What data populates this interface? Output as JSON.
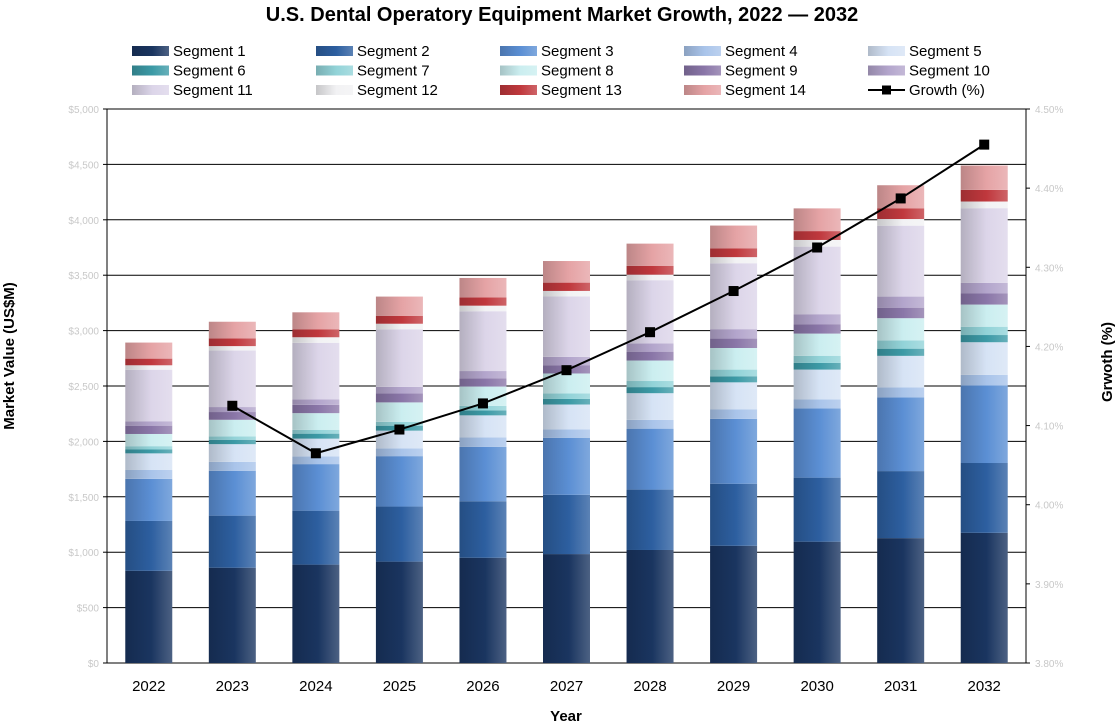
{
  "chart_data": {
    "type": "bar",
    "subtype": "stacked bar with line overlay on secondary axis",
    "title": "U.S. Dental Operatory Equipment Market Growth, 2022 — 2032",
    "xlabel": "Year",
    "ylabel": "Market Value (US$M)",
    "y2label": "Grwoth (%)",
    "categories": [
      "2022",
      "2023",
      "2024",
      "2025",
      "2026",
      "2027",
      "2028",
      "2029",
      "2030",
      "2031",
      "2032"
    ],
    "y_ticks": [
      "$0",
      "$500",
      "$1,000",
      "$1,500",
      "$2,000",
      "$2,500",
      "$3,000",
      "$3,500",
      "$4,000",
      "$4,500",
      "$5,000"
    ],
    "y2_ticks": [
      "3.80%",
      "3.90%",
      "4.00%",
      "4.10%",
      "4.20%",
      "4.30%",
      "4.40%",
      "4.50%"
    ],
    "ylim": [
      0,
      5000
    ],
    "y2lim": [
      3.8,
      4.5
    ],
    "grid": "horizontal",
    "legend_position": "top",
    "series": [
      {
        "name": "Segment 1",
        "color": "#1a3560",
        "values": [
          832,
          860,
          888,
          915,
          950,
          983,
          1020,
          1058,
          1095,
          1127,
          1175
        ]
      },
      {
        "name": "Segment 2",
        "color": "#2d5fa0",
        "values": [
          450,
          470,
          487,
          497,
          510,
          535,
          545,
          560,
          578,
          605,
          630
        ]
      },
      {
        "name": "Segment 3",
        "color": "#5b8fd4",
        "values": [
          380,
          405,
          420,
          455,
          490,
          515,
          550,
          585,
          625,
          665,
          700
        ]
      },
      {
        "name": "Segment 4",
        "color": "#a9c4ea",
        "values": [
          80,
          80,
          70,
          70,
          85,
          75,
          80,
          85,
          80,
          90,
          95
        ]
      },
      {
        "name": "Segment 5",
        "color": "#d6e3f5",
        "values": [
          150,
          160,
          160,
          160,
          200,
          225,
          240,
          245,
          270,
          285,
          295
        ]
      },
      {
        "name": "Segment 6",
        "color": "#3c9aa6",
        "values": [
          35,
          40,
          45,
          45,
          45,
          50,
          55,
          55,
          60,
          65,
          65
        ]
      },
      {
        "name": "Segment 7",
        "color": "#92d3d8",
        "values": [
          30,
          30,
          35,
          35,
          40,
          50,
          55,
          60,
          65,
          75,
          75
        ]
      },
      {
        "name": "Segment 8",
        "color": "#cbeef0",
        "values": [
          110,
          150,
          150,
          175,
          175,
          180,
          185,
          195,
          200,
          200,
          200
        ]
      },
      {
        "name": "Segment 9",
        "color": "#8a76a8",
        "values": [
          75,
          70,
          75,
          80,
          75,
          75,
          80,
          85,
          85,
          95,
          100
        ]
      },
      {
        "name": "Segment 10",
        "color": "#b3a5cc",
        "values": [
          40,
          45,
          50,
          60,
          65,
          75,
          75,
          85,
          90,
          100,
          95
        ]
      },
      {
        "name": "Segment 11",
        "color": "#dcd5e9",
        "values": [
          465,
          510,
          510,
          520,
          540,
          545,
          570,
          595,
          610,
          640,
          675
        ]
      },
      {
        "name": "Segment 12",
        "color": "#f2f2f4",
        "values": [
          40,
          40,
          50,
          50,
          50,
          50,
          50,
          55,
          60,
          60,
          60
        ]
      },
      {
        "name": "Segment 13",
        "color": "#c0383d",
        "values": [
          60,
          70,
          70,
          70,
          75,
          75,
          80,
          80,
          80,
          95,
          105
        ]
      },
      {
        "name": "Segment 14",
        "color": "#e5a3a5",
        "values": [
          145,
          150,
          155,
          175,
          175,
          195,
          200,
          205,
          205,
          210,
          220
        ]
      }
    ],
    "line_series": {
      "name": "Growth (%)",
      "axis": "secondary",
      "color": "#000000",
      "x": [
        "2023",
        "2024",
        "2025",
        "2026",
        "2027",
        "2028",
        "2029",
        "2030",
        "2031",
        "2032"
      ],
      "values": [
        4.125,
        4.065,
        4.095,
        4.128,
        4.17,
        4.218,
        4.27,
        4.325,
        4.387,
        4.455
      ]
    }
  }
}
